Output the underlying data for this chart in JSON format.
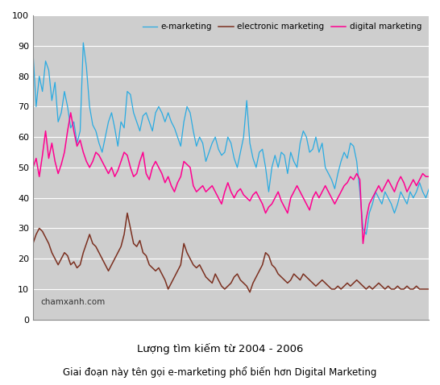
{
  "title1": "Lượng tìm kiếm từ 2004 - 2006",
  "title2": "Giai đoạn này tên gọi e-marketing phổ biến hơn Digital Marketing",
  "watermark": "chamxanh.com",
  "legend_labels": [
    "e-marketing",
    "electronic marketing",
    "digital marketing"
  ],
  "colors": {
    "e_marketing": "#29ABE2",
    "electronic_marketing": "#7B3020",
    "digital_marketing": "#FF0090"
  },
  "ylim": [
    0,
    100
  ],
  "yticks": [
    0,
    10,
    20,
    30,
    40,
    50,
    60,
    70,
    80,
    90,
    100
  ],
  "background_color": "#CECECE",
  "e_marketing": [
    88,
    70,
    80,
    75,
    85,
    82,
    72,
    78,
    65,
    68,
    75,
    70,
    63,
    65,
    58,
    62,
    91,
    83,
    70,
    64,
    62,
    58,
    55,
    60,
    65,
    68,
    63,
    57,
    65,
    63,
    75,
    74,
    68,
    65,
    62,
    67,
    68,
    65,
    62,
    68,
    70,
    68,
    65,
    68,
    65,
    63,
    60,
    57,
    65,
    70,
    68,
    62,
    57,
    60,
    58,
    52,
    55,
    58,
    60,
    56,
    54,
    55,
    60,
    58,
    53,
    50,
    55,
    60,
    72,
    58,
    53,
    50,
    55,
    56,
    50,
    42,
    50,
    54,
    50,
    55,
    54,
    48,
    55,
    52,
    50,
    58,
    62,
    60,
    55,
    56,
    60,
    55,
    58,
    50,
    48,
    46,
    43,
    48,
    52,
    55,
    53,
    58,
    57,
    52,
    42,
    30,
    28,
    35,
    38,
    42,
    40,
    38,
    42,
    40,
    38,
    35,
    38,
    42,
    40,
    38,
    42,
    40,
    42,
    45,
    42,
    40,
    43
  ],
  "electronic_marketing": [
    25,
    28,
    30,
    29,
    27,
    25,
    22,
    20,
    18,
    20,
    22,
    21,
    18,
    19,
    17,
    18,
    22,
    25,
    28,
    25,
    24,
    22,
    20,
    18,
    16,
    18,
    20,
    22,
    24,
    28,
    35,
    30,
    25,
    24,
    26,
    22,
    21,
    18,
    17,
    16,
    17,
    15,
    13,
    10,
    12,
    14,
    16,
    18,
    25,
    22,
    20,
    18,
    17,
    18,
    16,
    14,
    13,
    12,
    15,
    13,
    11,
    10,
    11,
    12,
    14,
    15,
    13,
    12,
    11,
    9,
    12,
    14,
    16,
    18,
    22,
    21,
    18,
    17,
    15,
    14,
    13,
    12,
    13,
    15,
    14,
    13,
    15,
    14,
    13,
    12,
    11,
    12,
    13,
    12,
    11,
    10,
    10,
    11,
    10,
    11,
    12,
    11,
    12,
    13,
    12,
    11,
    10,
    11,
    10,
    11,
    12,
    11,
    10,
    11,
    10,
    10,
    11,
    10,
    10,
    11,
    10,
    10,
    11,
    10,
    10,
    10,
    10
  ],
  "digital_marketing": [
    50,
    53,
    47,
    54,
    62,
    53,
    58,
    52,
    48,
    51,
    55,
    62,
    68,
    62,
    57,
    59,
    55,
    52,
    50,
    52,
    55,
    54,
    52,
    50,
    48,
    50,
    47,
    49,
    52,
    55,
    54,
    50,
    47,
    48,
    52,
    55,
    48,
    46,
    50,
    52,
    50,
    48,
    45,
    47,
    44,
    42,
    45,
    47,
    52,
    51,
    50,
    44,
    42,
    43,
    44,
    42,
    43,
    44,
    42,
    40,
    38,
    42,
    45,
    42,
    40,
    42,
    43,
    41,
    40,
    39,
    41,
    42,
    40,
    38,
    35,
    37,
    38,
    40,
    42,
    39,
    37,
    35,
    40,
    42,
    44,
    42,
    40,
    38,
    36,
    40,
    42,
    40,
    42,
    44,
    42,
    40,
    38,
    40,
    42,
    44,
    45,
    47,
    46,
    48,
    46,
    25,
    33,
    38,
    40,
    42,
    44,
    42,
    44,
    46,
    44,
    42,
    45,
    47,
    45,
    42,
    44,
    46,
    44,
    46,
    48,
    47,
    47
  ]
}
